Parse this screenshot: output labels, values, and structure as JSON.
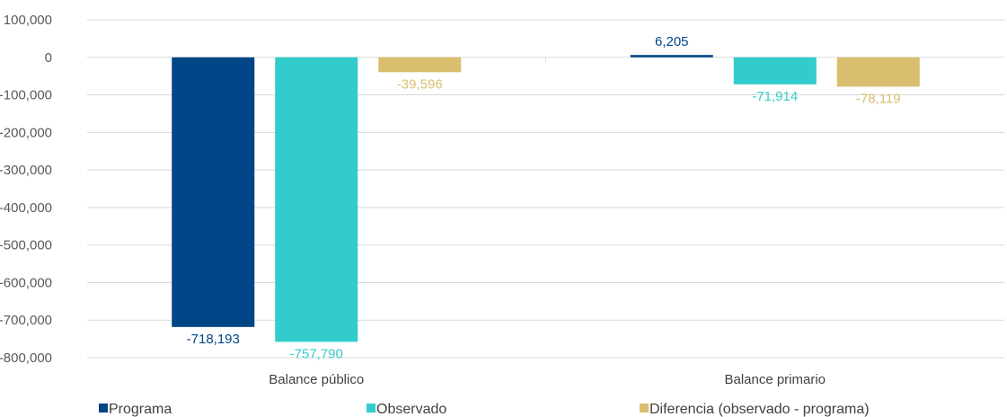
{
  "chart_data": {
    "type": "bar",
    "categories": [
      "Balance público",
      "Balance primario"
    ],
    "series": [
      {
        "name": "Programa",
        "values": [
          -718193,
          6205
        ],
        "labels": [
          "-718,193",
          "6,205"
        ],
        "color": "#004586"
      },
      {
        "name": "Observado",
        "values": [
          -757790,
          -71914
        ],
        "labels": [
          "-757,790",
          "-71,914"
        ],
        "color": "#33cccc"
      },
      {
        "name": "Diferencia (observado - programa)",
        "values": [
          -39596,
          -78119
        ],
        "labels": [
          "-39,596",
          "-78,119"
        ],
        "color": "#d9be6f"
      }
    ],
    "yticks": [
      100000,
      0,
      -100000,
      -200000,
      -300000,
      -400000,
      -500000,
      -600000,
      -700000,
      -800000
    ],
    "ytick_labels": [
      "100,000",
      "0",
      "-100,000",
      "-200,000",
      "-300,000",
      "-400,000",
      "-500,000",
      "-600,000",
      "-700,000",
      "-800,000"
    ],
    "ylim": [
      -800000,
      100000
    ],
    "grid": true,
    "legend_position": "bottom",
    "title": "",
    "xlabel": "",
    "ylabel": ""
  }
}
